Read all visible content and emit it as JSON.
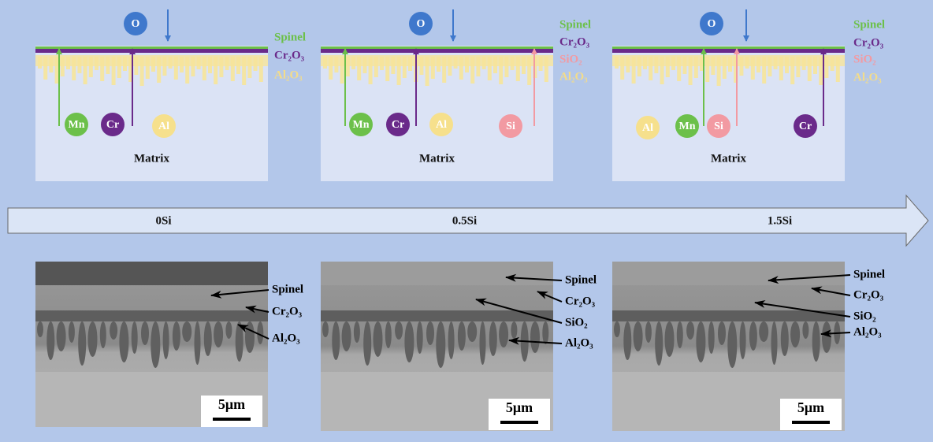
{
  "panels": [
    {
      "label": "0Si",
      "schematic": {
        "oxygen": "O",
        "matrix": "Matrix",
        "layers": [
          {
            "name": "Spinel",
            "color": "#6cc04a"
          },
          {
            "name": "Cr₂O₃",
            "color": "#6a2a8a"
          },
          {
            "name": "Al₂O₃",
            "color": "#f3dc8a"
          }
        ],
        "elements": [
          {
            "name": "Mn",
            "color": "#6cc04a"
          },
          {
            "name": "Cr",
            "color": "#6a2a8a"
          },
          {
            "name": "Al",
            "color": "#f6e08c"
          }
        ]
      },
      "micrograph": {
        "layers": [
          "Spinel",
          "Cr₂O₃",
          "Al₂O₃"
        ],
        "scale": "5μm"
      }
    },
    {
      "label": "0.5Si",
      "schematic": {
        "oxygen": "O",
        "matrix": "Matrix",
        "layers": [
          {
            "name": "Spinel",
            "color": "#6cc04a"
          },
          {
            "name": "Cr₂O₃",
            "color": "#6a2a8a"
          },
          {
            "name": "SiO₂",
            "color": "#f29aa2"
          },
          {
            "name": "Al₂O₃",
            "color": "#f3dc8a"
          }
        ],
        "elements": [
          {
            "name": "Mn",
            "color": "#6cc04a"
          },
          {
            "name": "Cr",
            "color": "#6a2a8a"
          },
          {
            "name": "Al",
            "color": "#f6e08c"
          },
          {
            "name": "Si",
            "color": "#f29aa2"
          }
        ]
      },
      "micrograph": {
        "layers": [
          "Spinel",
          "Cr₂O₃",
          "SiO₂",
          "Al₂O₃"
        ],
        "scale": "5μm"
      }
    },
    {
      "label": "1.5Si",
      "schematic": {
        "oxygen": "O",
        "matrix": "Matrix",
        "layers": [
          {
            "name": "Spinel",
            "color": "#6cc04a"
          },
          {
            "name": "Cr₂O₃",
            "color": "#6a2a8a"
          },
          {
            "name": "SiO₂",
            "color": "#f29aa2"
          },
          {
            "name": "Al₂O₃",
            "color": "#f3dc8a"
          }
        ],
        "elements": [
          {
            "name": "Al",
            "color": "#f6e08c"
          },
          {
            "name": "Mn",
            "color": "#6cc04a"
          },
          {
            "name": "Si",
            "color": "#f29aa2"
          },
          {
            "name": "Cr",
            "color": "#6a2a8a"
          }
        ]
      },
      "micrograph": {
        "layers": [
          "Spinel",
          "Cr₂O₃",
          "SiO₂",
          "Al₂O₃"
        ],
        "scale": "5μm"
      }
    }
  ]
}
